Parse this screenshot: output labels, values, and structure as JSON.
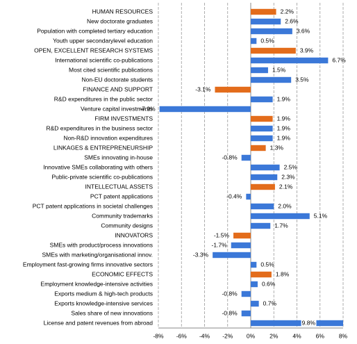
{
  "chart_data": {
    "type": "hbar",
    "categories": [
      "HUMAN RESOURCES",
      "New doctorate graduates",
      "Population with completed tertiary education",
      "Youth upper secondarylevel education",
      "OPEN, EXCELLENT RESEARCH SYSTEMS",
      "International scientific co-publications",
      "Most cited scientific publications",
      "Non-EU doctorate students",
      "FINANCE AND SUPPORT",
      "R&D expenditures in the public sector",
      "Venture capital investments",
      "FIRM INVESTMENTS",
      "R&D expenditures in the business sector",
      "Non-R&D innovation expenditures",
      "LINKAGES & ENTREPRENEURSHIP",
      "SMEs innovating in-house",
      "Innovative SMEs collaborating with others",
      "Public-private scientific co-publications",
      "INTELLECTUAL ASSETS",
      "PCT patent applications",
      "PCT patent applications in societal challenges",
      "Community trademarks",
      "Community designs",
      "INNOVATORS",
      "SMEs with product/process innovations",
      "SMEs with marketing/organisational innov.",
      "Employment fast-growing firms innovative sectors",
      "ECONOMIC EFFECTS",
      "Employment knowledge-intensive activities",
      "Exports medium & high-tech products",
      "Exports knowledge-intensive services",
      "Sales share of new innovations",
      "License and patent revenues from abroad"
    ],
    "values": [
      2.2,
      2.6,
      3.6,
      0.5,
      3.9,
      6.7,
      1.5,
      3.5,
      -3.1,
      1.9,
      -7.9,
      1.9,
      1.9,
      1.9,
      1.3,
      -0.8,
      2.5,
      2.3,
      2.1,
      -0.4,
      2.0,
      5.1,
      1.7,
      -1.5,
      -1.7,
      -3.3,
      0.5,
      1.8,
      0.6,
      -0.8,
      0.7,
      -0.8,
      9.8
    ],
    "value_labels": [
      "2.2%",
      "2.6%",
      "3.6%",
      "0.5%",
      "3.9%",
      "6.7%",
      "1.5%",
      "3.5%",
      "-3.1%",
      "1.9%",
      "-7.9%",
      "1.9%",
      "1.9%",
      "1.9%",
      "1.3%",
      "-0.8%",
      "2.5%",
      "2.3%",
      "2.1%",
      "-0.4%",
      "2.0%",
      "5.1%",
      "1.7%",
      "-1.5%",
      "-1.7%",
      "-3.3%",
      "0.5%",
      "1.8%",
      "0.6%",
      "-0.8%",
      "0.7%",
      "-0.8%",
      "9.8%"
    ],
    "colors": [
      "#e36c1b",
      "#3b78d8",
      "#3b78d8",
      "#3b78d8",
      "#e36c1b",
      "#3b78d8",
      "#3b78d8",
      "#3b78d8",
      "#e36c1b",
      "#3b78d8",
      "#3b78d8",
      "#e36c1b",
      "#3b78d8",
      "#3b78d8",
      "#e36c1b",
      "#3b78d8",
      "#3b78d8",
      "#3b78d8",
      "#e36c1b",
      "#3b78d8",
      "#3b78d8",
      "#3b78d8",
      "#3b78d8",
      "#e36c1b",
      "#3b78d8",
      "#3b78d8",
      "#3b78d8",
      "#e36c1b",
      "#3b78d8",
      "#3b78d8",
      "#3b78d8",
      "#3b78d8",
      "#3b78d8"
    ],
    "xlim": [
      -8,
      8
    ],
    "xticks": [
      {
        "value": -8,
        "label": "-8%"
      },
      {
        "value": -6,
        "label": "-6%"
      },
      {
        "value": -4,
        "label": "-4%"
      },
      {
        "value": -2,
        "label": "-2%"
      },
      {
        "value": 0,
        "label": "0%"
      },
      {
        "value": 2,
        "label": "2%"
      },
      {
        "value": 4,
        "label": "4%"
      },
      {
        "value": 6,
        "label": "6%"
      },
      {
        "value": 8,
        "label": "8%"
      }
    ],
    "grid": true
  }
}
